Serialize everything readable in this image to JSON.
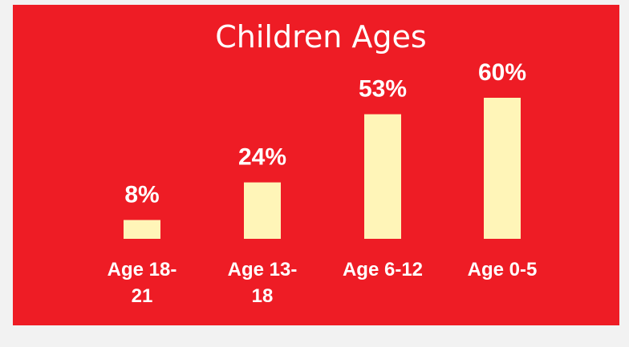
{
  "chart_data": {
    "type": "bar",
    "title": "Children Ages",
    "categories": [
      [
        "Age 18-",
        "21"
      ],
      [
        "Age 13-",
        "18"
      ],
      [
        "Age 6-12"
      ],
      [
        "Age 0-5"
      ]
    ],
    "values": [
      8,
      24,
      53,
      60
    ],
    "value_labels": [
      "8%",
      "24%",
      "53%",
      "60%"
    ],
    "ylim": [
      0,
      60
    ],
    "grid": false,
    "legend": "none",
    "colors": {
      "background": "#ee1c25",
      "bar": "#fff5b8",
      "text": "#ffffff"
    }
  }
}
